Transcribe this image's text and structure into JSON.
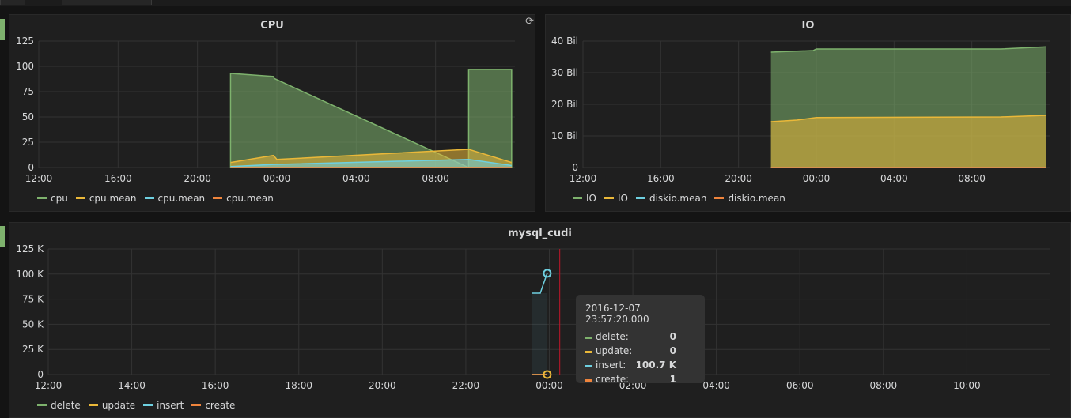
{
  "panels": {
    "cpu": {
      "title": "CPU",
      "legend": [
        {
          "label": "cpu",
          "color": "#7eb26d"
        },
        {
          "label": "cpu.mean",
          "color": "#eab839"
        },
        {
          "label": "cpu.mean",
          "color": "#6ed0e0"
        },
        {
          "label": "cpu.mean",
          "color": "#ef843c"
        }
      ]
    },
    "io": {
      "title": "IO",
      "legend": [
        {
          "label": "IO",
          "color": "#7eb26d"
        },
        {
          "label": "IO",
          "color": "#eab839"
        },
        {
          "label": "diskio.mean",
          "color": "#6ed0e0"
        },
        {
          "label": "diskio.mean",
          "color": "#ef843c"
        }
      ]
    },
    "mysql": {
      "title": "mysql_cudi",
      "legend": [
        {
          "label": "delete",
          "color": "#7eb26d"
        },
        {
          "label": "update",
          "color": "#eab839"
        },
        {
          "label": "insert",
          "color": "#6ed0e0"
        },
        {
          "label": "create",
          "color": "#ef843c"
        }
      ],
      "tooltip": {
        "time": "2016-12-07 23:57:20.000",
        "rows": [
          {
            "label": "delete:",
            "value": "0",
            "color": "#7eb26d"
          },
          {
            "label": "update:",
            "value": "0",
            "color": "#eab839"
          },
          {
            "label": "insert:",
            "value": "100.7 K",
            "color": "#6ed0e0"
          },
          {
            "label": "create:",
            "value": "1",
            "color": "#ef843c"
          }
        ]
      }
    }
  },
  "chart_data": [
    {
      "type": "area",
      "title": "CPU",
      "x_ticks": [
        "12:00",
        "16:00",
        "20:00",
        "00:00",
        "04:00",
        "08:00"
      ],
      "y_ticks": [
        "0",
        "25",
        "50",
        "75",
        "100",
        "125"
      ],
      "ylim": [
        0,
        125
      ],
      "grid": true,
      "legend_position": "bottom",
      "series": [
        {
          "name": "cpu",
          "color": "#7eb26d",
          "points": [
            [
              "21:40",
              0
            ],
            [
              "21:40",
              93
            ],
            [
              "23:50",
              90
            ],
            [
              "23:52",
              88
            ],
            [
              "09:40",
              0
            ],
            [
              "09:40",
              97
            ],
            [
              "11:50",
              97
            ],
            [
              "11:50",
              0
            ]
          ]
        },
        {
          "name": "cpu.mean",
          "color": "#eab839",
          "points": [
            [
              "21:40",
              5
            ],
            [
              "23:50",
              12
            ],
            [
              "00:00",
              8
            ],
            [
              "09:40",
              18
            ],
            [
              "11:50",
              5
            ]
          ]
        },
        {
          "name": "cpu.mean",
          "color": "#6ed0e0",
          "points": [
            [
              "21:40",
              1
            ],
            [
              "23:50",
              3
            ],
            [
              "09:40",
              8
            ],
            [
              "11:50",
              2
            ]
          ]
        },
        {
          "name": "cpu.mean",
          "color": "#ef843c",
          "points": [
            [
              "21:40",
              0
            ],
            [
              "11:50",
              0
            ]
          ]
        }
      ]
    },
    {
      "type": "area",
      "title": "IO",
      "x_ticks": [
        "12:00",
        "16:00",
        "20:00",
        "00:00",
        "04:00",
        "08:00"
      ],
      "y_ticks": [
        "0",
        "10 Bil",
        "20 Bil",
        "30 Bil",
        "40 Bil"
      ],
      "ylim": [
        0,
        40
      ],
      "y_unit": "Bil",
      "grid": true,
      "legend_position": "bottom",
      "series": [
        {
          "name": "IO",
          "color": "#7eb26d",
          "points": [
            [
              "21:40",
              36.5
            ],
            [
              "23:50",
              37.0
            ],
            [
              "00:00",
              37.5
            ],
            [
              "09:30",
              37.5
            ],
            [
              "11:50",
              38.2
            ]
          ]
        },
        {
          "name": "IO",
          "color": "#eab839",
          "points": [
            [
              "21:40",
              14.5
            ],
            [
              "23:00",
              15.0
            ],
            [
              "00:00",
              15.8
            ],
            [
              "09:30",
              16.0
            ],
            [
              "11:50",
              16.5
            ]
          ]
        },
        {
          "name": "diskio.mean",
          "color": "#6ed0e0",
          "points": [
            [
              "21:40",
              0
            ],
            [
              "11:50",
              0
            ]
          ]
        },
        {
          "name": "diskio.mean",
          "color": "#ef843c",
          "points": [
            [
              "21:40",
              0
            ],
            [
              "11:50",
              0
            ]
          ]
        }
      ]
    },
    {
      "type": "line",
      "title": "mysql_cudi",
      "x_ticks": [
        "12:00",
        "14:00",
        "16:00",
        "18:00",
        "20:00",
        "22:00",
        "00:00",
        "02:00",
        "04:00",
        "06:00",
        "08:00",
        "10:00"
      ],
      "y_ticks": [
        "0",
        "25 K",
        "50 K",
        "75 K",
        "100 K",
        "125 K"
      ],
      "ylim": [
        0,
        125
      ],
      "y_unit": "K",
      "grid": true,
      "legend_position": "bottom",
      "series": [
        {
          "name": "delete",
          "color": "#7eb26d",
          "points": [
            [
              "23:35",
              0
            ],
            [
              "23:57",
              0
            ]
          ]
        },
        {
          "name": "update",
          "color": "#eab839",
          "points": [
            [
              "23:35",
              0
            ],
            [
              "23:57",
              0
            ]
          ]
        },
        {
          "name": "insert",
          "color": "#6ed0e0",
          "points": [
            [
              "23:35",
              81
            ],
            [
              "23:47",
              81
            ],
            [
              "23:55",
              97
            ],
            [
              "23:57",
              100.7
            ]
          ]
        },
        {
          "name": "create",
          "color": "#ef843c",
          "points": [
            [
              "23:35",
              0.001
            ],
            [
              "23:57",
              0.001
            ]
          ]
        }
      ]
    }
  ]
}
